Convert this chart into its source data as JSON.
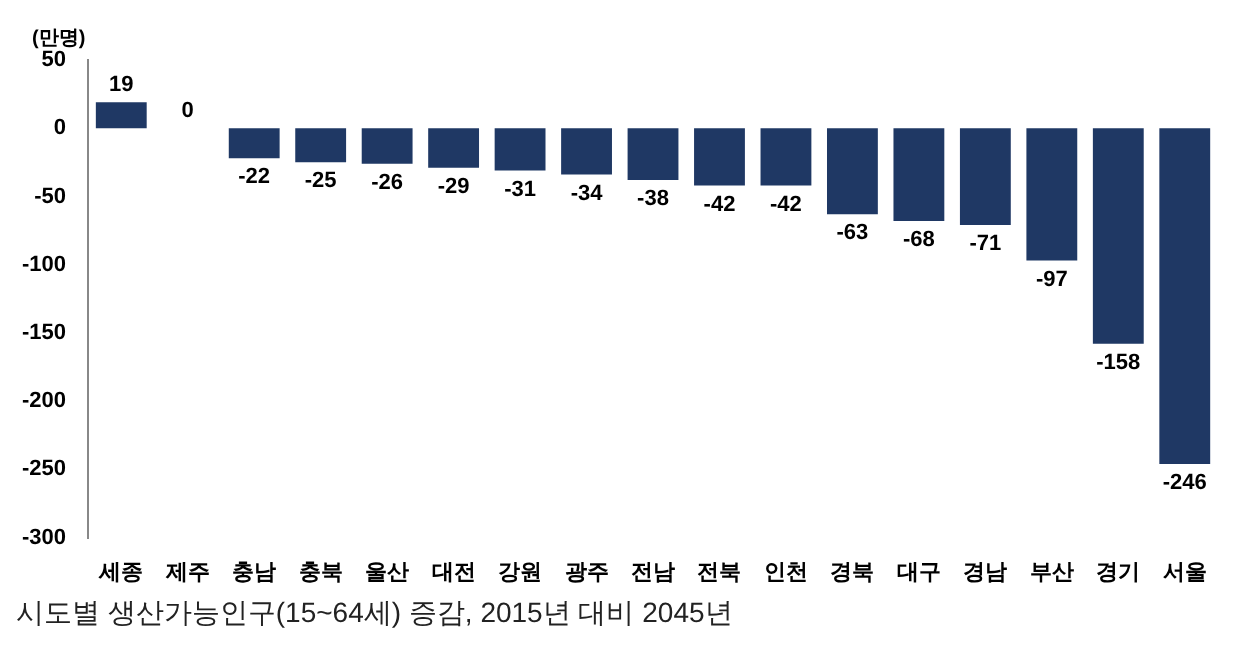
{
  "chart_data": {
    "type": "bar",
    "ylabel": "(만명)",
    "categories": [
      "세종",
      "제주",
      "충남",
      "충북",
      "울산",
      "대전",
      "강원",
      "광주",
      "전남",
      "전북",
      "인천",
      "경북",
      "대구",
      "경남",
      "부산",
      "경기",
      "서울"
    ],
    "values": [
      19,
      0,
      -22,
      -25,
      -26,
      -29,
      -31,
      -34,
      -38,
      -42,
      -42,
      -63,
      -68,
      -71,
      -97,
      -158,
      -246
    ],
    "color": "#1f3864",
    "ylim": [
      -300,
      50
    ],
    "yticks": [
      -300,
      -250,
      -200,
      -150,
      -100,
      -50,
      0,
      50
    ],
    "grid": false,
    "legend": false,
    "data_labels": true,
    "annotations": [
      "시도별 생산가능인구(15~64세) 증감, 2015년 대비 2045년"
    ]
  }
}
